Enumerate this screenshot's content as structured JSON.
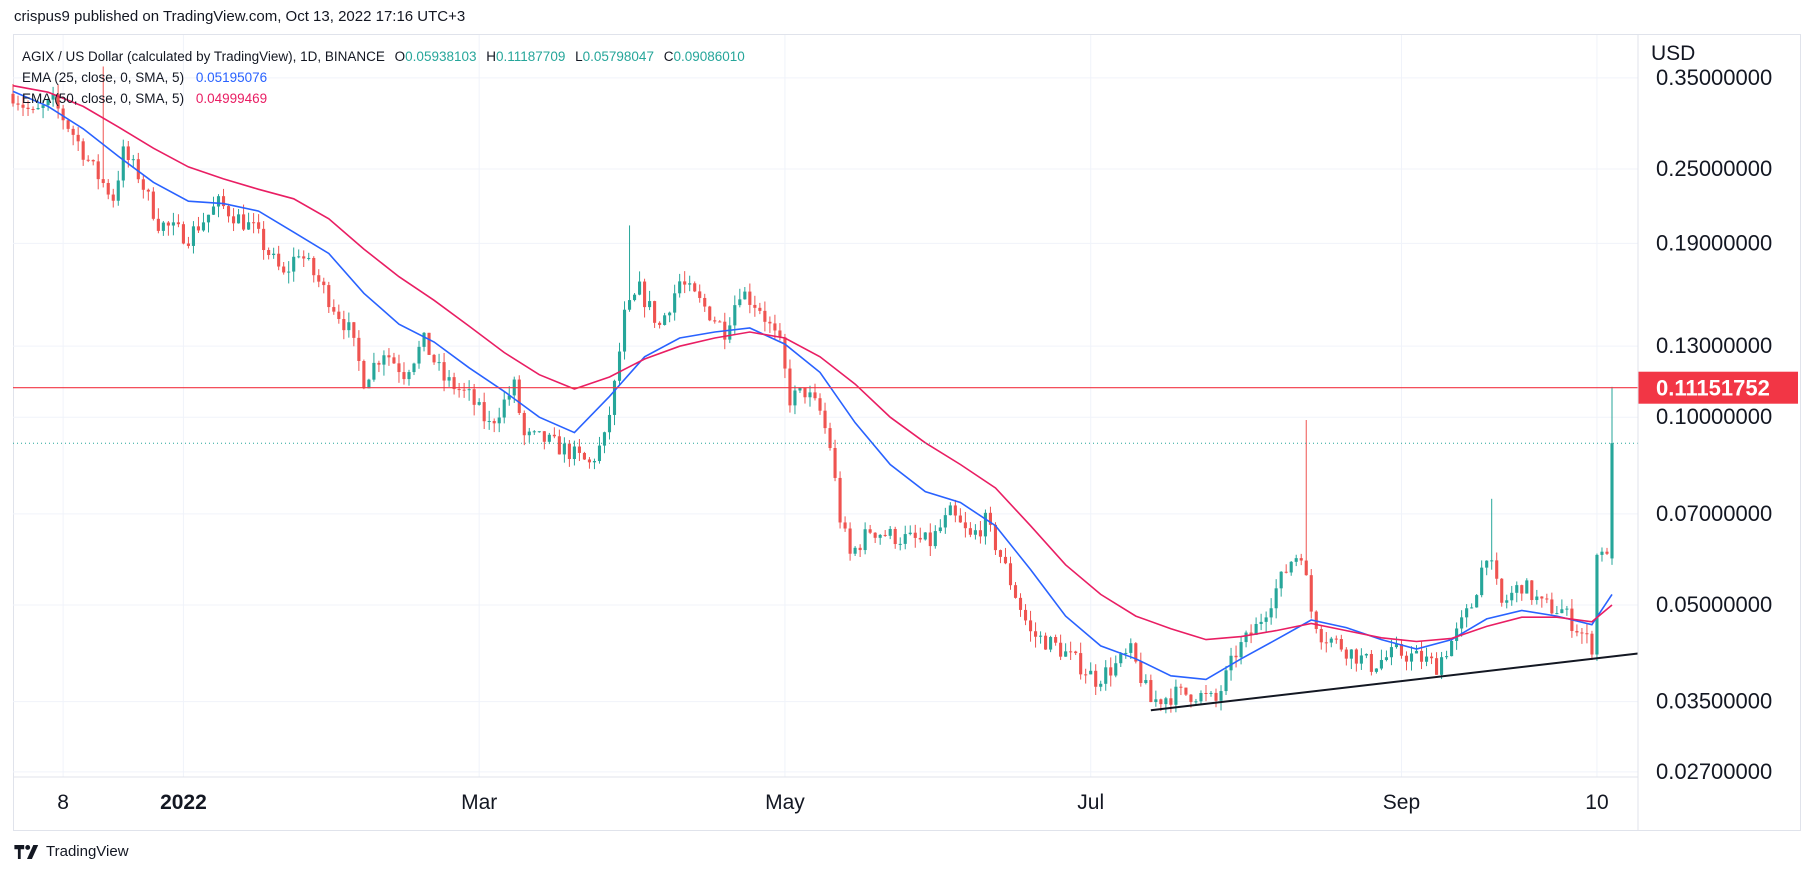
{
  "header": {
    "published_by": "crispus9 published on TradingView.com, Oct 13, 2022 17:16 UTC+3"
  },
  "legend": {
    "symbol": "AGIX / US Dollar (calculated by TradingView), 1D, BINANCE",
    "open_label": "O",
    "open": "0.05938103",
    "high_label": "H",
    "high": "0.11187709",
    "low_label": "L",
    "low": "0.05798047",
    "close_label": "C",
    "close": "0.09086010",
    "ema25_label": "EMA (25, close, 0, SMA, 5)",
    "ema25_value": "0.05195076",
    "ema50_label": "EMA (50, close, 0, SMA, 5)",
    "ema50_value": "0.04999469"
  },
  "footer": {
    "brand": "TradingView"
  },
  "chart_data": {
    "type": "candlestick",
    "currency": "USD",
    "y_scale": "log",
    "ylim": [
      0.0265,
      0.41
    ],
    "xlim": [
      "2021-11-28",
      "2022-10-13"
    ],
    "y_ticks": [
      0.35,
      0.25,
      0.19,
      0.13,
      0.1,
      0.07,
      0.05,
      0.035,
      0.027
    ],
    "y_tick_labels": [
      "0.35000000",
      "0.25000000",
      "0.19000000",
      "0.13000000",
      "0.10000000",
      "0.07000000",
      "0.05000000",
      "0.03500000",
      "0.02700000"
    ],
    "x_ticks": [
      {
        "label": "8",
        "date": "2021-12-08",
        "bold": false
      },
      {
        "label": "2022",
        "date": "2022-01-01",
        "bold": true
      },
      {
        "label": "Mar",
        "date": "2022-03-01",
        "bold": false
      },
      {
        "label": "May",
        "date": "2022-05-01",
        "bold": false
      },
      {
        "label": "Jul",
        "date": "2022-07-01",
        "bold": false
      },
      {
        "label": "Sep",
        "date": "2022-09-01",
        "bold": false
      },
      {
        "label": "10",
        "date": "2022-10-10",
        "bold": false
      }
    ],
    "price_line": {
      "value": 0.11151752,
      "label": "0.11151752",
      "color": "#f23645"
    },
    "last_close_line": {
      "value": 0.0908601,
      "color": "#26a69a"
    },
    "trendline": {
      "from": {
        "date": "2022-07-13",
        "value": 0.0339
      },
      "to": {
        "date": "2022-10-13",
        "value": 0.0415
      },
      "color": "#131722"
    },
    "colors": {
      "up": "#26a69a",
      "down": "#ef5350",
      "ema25": "#2962ff",
      "ema50": "#e91e63",
      "grid": "#f0f3fa"
    },
    "series": [
      {
        "name": "EMA (25, close, 0, SMA, 5)",
        "color": "#2962ff",
        "points": [
          [
            "2021-11-28",
            0.333
          ],
          [
            "2021-12-05",
            0.315
          ],
          [
            "2021-12-12",
            0.29
          ],
          [
            "2021-12-19",
            0.262
          ],
          [
            "2021-12-26",
            0.238
          ],
          [
            "2022-01-02",
            0.222
          ],
          [
            "2022-01-09",
            0.22
          ],
          [
            "2022-01-16",
            0.214
          ],
          [
            "2022-01-23",
            0.198
          ],
          [
            "2022-01-30",
            0.183
          ],
          [
            "2022-02-06",
            0.158
          ],
          [
            "2022-02-13",
            0.141
          ],
          [
            "2022-02-20",
            0.132
          ],
          [
            "2022-02-27",
            0.12
          ],
          [
            "2022-03-06",
            0.11
          ],
          [
            "2022-03-13",
            0.1
          ],
          [
            "2022-03-20",
            0.0945
          ],
          [
            "2022-03-27",
            0.108
          ],
          [
            "2022-04-03",
            0.125
          ],
          [
            "2022-04-10",
            0.134
          ],
          [
            "2022-04-17",
            0.137
          ],
          [
            "2022-04-24",
            0.139
          ],
          [
            "2022-05-01",
            0.131
          ],
          [
            "2022-05-08",
            0.118
          ],
          [
            "2022-05-15",
            0.098
          ],
          [
            "2022-05-22",
            0.084
          ],
          [
            "2022-05-29",
            0.076
          ],
          [
            "2022-06-05",
            0.073
          ],
          [
            "2022-06-12",
            0.067
          ],
          [
            "2022-06-19",
            0.057
          ],
          [
            "2022-06-26",
            0.048
          ],
          [
            "2022-07-03",
            0.043
          ],
          [
            "2022-07-10",
            0.041
          ],
          [
            "2022-07-17",
            0.0385
          ],
          [
            "2022-07-24",
            0.038
          ],
          [
            "2022-07-31",
            0.041
          ],
          [
            "2022-08-07",
            0.044
          ],
          [
            "2022-08-14",
            0.0473
          ],
          [
            "2022-08-21",
            0.046
          ],
          [
            "2022-08-28",
            0.044
          ],
          [
            "2022-09-04",
            0.0425
          ],
          [
            "2022-09-11",
            0.044
          ],
          [
            "2022-09-18",
            0.0475
          ],
          [
            "2022-09-25",
            0.049
          ],
          [
            "2022-10-02",
            0.048
          ],
          [
            "2022-10-09",
            0.0465
          ],
          [
            "2022-10-13",
            0.052
          ]
        ]
      },
      {
        "name": "EMA (50, close, 0, SMA, 5)",
        "color": "#e91e63",
        "points": [
          [
            "2021-11-28",
            0.34
          ],
          [
            "2021-12-05",
            0.332
          ],
          [
            "2021-12-12",
            0.315
          ],
          [
            "2021-12-19",
            0.292
          ],
          [
            "2021-12-26",
            0.27
          ],
          [
            "2022-01-02",
            0.252
          ],
          [
            "2022-01-09",
            0.241
          ],
          [
            "2022-01-16",
            0.232
          ],
          [
            "2022-01-23",
            0.224
          ],
          [
            "2022-01-30",
            0.208
          ],
          [
            "2022-02-06",
            0.186
          ],
          [
            "2022-02-13",
            0.168
          ],
          [
            "2022-02-20",
            0.154
          ],
          [
            "2022-02-27",
            0.14
          ],
          [
            "2022-03-06",
            0.127
          ],
          [
            "2022-03-13",
            0.117
          ],
          [
            "2022-03-20",
            0.111
          ],
          [
            "2022-03-27",
            0.116
          ],
          [
            "2022-04-03",
            0.124
          ],
          [
            "2022-04-10",
            0.13
          ],
          [
            "2022-04-17",
            0.134
          ],
          [
            "2022-04-24",
            0.137
          ],
          [
            "2022-05-01",
            0.134
          ],
          [
            "2022-05-08",
            0.125
          ],
          [
            "2022-05-15",
            0.113
          ],
          [
            "2022-05-22",
            0.1
          ],
          [
            "2022-05-29",
            0.091
          ],
          [
            "2022-06-05",
            0.084
          ],
          [
            "2022-06-12",
            0.077
          ],
          [
            "2022-06-19",
            0.067
          ],
          [
            "2022-06-26",
            0.058
          ],
          [
            "2022-07-03",
            0.052
          ],
          [
            "2022-07-10",
            0.048
          ],
          [
            "2022-07-17",
            0.0458
          ],
          [
            "2022-07-24",
            0.044
          ],
          [
            "2022-07-31",
            0.0445
          ],
          [
            "2022-08-07",
            0.0455
          ],
          [
            "2022-08-14",
            0.0467
          ],
          [
            "2022-08-21",
            0.0455
          ],
          [
            "2022-08-28",
            0.0443
          ],
          [
            "2022-09-04",
            0.0437
          ],
          [
            "2022-09-11",
            0.0442
          ],
          [
            "2022-09-18",
            0.0462
          ],
          [
            "2022-09-25",
            0.0478
          ],
          [
            "2022-10-02",
            0.0478
          ],
          [
            "2022-10-09",
            0.047
          ],
          [
            "2022-10-13",
            0.05
          ]
        ]
      }
    ],
    "price_path": [
      [
        "2021-11-28",
        0.33
      ],
      [
        "2021-12-02",
        0.305
      ],
      [
        "2021-12-06",
        0.32
      ],
      [
        "2021-12-10",
        0.285
      ],
      [
        "2021-12-14",
        0.25
      ],
      [
        "2021-12-18",
        0.225
      ],
      [
        "2021-12-20",
        0.265
      ],
      [
        "2021-12-23",
        0.245
      ],
      [
        "2021-12-27",
        0.205
      ],
      [
        "2022-01-02",
        0.195
      ],
      [
        "2022-01-08",
        0.22
      ],
      [
        "2022-01-15",
        0.2
      ],
      [
        "2022-01-21",
        0.168
      ],
      [
        "2022-01-24",
        0.185
      ],
      [
        "2022-01-29",
        0.16
      ],
      [
        "2022-02-03",
        0.138
      ],
      [
        "2022-02-06",
        0.115
      ],
      [
        "2022-02-10",
        0.128
      ],
      [
        "2022-02-14",
        0.118
      ],
      [
        "2022-02-18",
        0.132
      ],
      [
        "2022-02-22",
        0.115
      ],
      [
        "2022-02-27",
        0.108
      ],
      [
        "2022-03-03",
        0.097
      ],
      [
        "2022-03-08",
        0.112
      ],
      [
        "2022-03-10",
        0.093
      ],
      [
        "2022-03-14",
        0.092
      ],
      [
        "2022-03-19",
        0.088
      ],
      [
        "2022-03-23",
        0.084
      ],
      [
        "2022-03-26",
        0.092
      ],
      [
        "2022-03-28",
        0.112
      ],
      [
        "2022-03-30",
        0.145
      ],
      [
        "2022-04-02",
        0.16
      ],
      [
        "2022-04-06",
        0.14
      ],
      [
        "2022-04-10",
        0.165
      ],
      [
        "2022-04-15",
        0.15
      ],
      [
        "2022-04-19",
        0.138
      ],
      [
        "2022-04-22",
        0.16
      ],
      [
        "2022-04-26",
        0.15
      ],
      [
        "2022-04-30",
        0.13
      ],
      [
        "2022-05-02",
        0.107
      ],
      [
        "2022-05-05",
        0.11
      ],
      [
        "2022-05-08",
        0.102
      ],
      [
        "2022-05-10",
        0.09
      ],
      [
        "2022-05-12",
        0.069
      ],
      [
        "2022-05-14",
        0.06
      ],
      [
        "2022-05-18",
        0.066
      ],
      [
        "2022-05-24",
        0.064
      ],
      [
        "2022-05-30",
        0.063
      ],
      [
        "2022-06-03",
        0.07
      ],
      [
        "2022-06-07",
        0.064
      ],
      [
        "2022-06-10",
        0.068
      ],
      [
        "2022-06-13",
        0.06
      ],
      [
        "2022-06-16",
        0.052
      ],
      [
        "2022-06-19",
        0.045
      ],
      [
        "2022-06-24",
        0.043
      ],
      [
        "2022-06-29",
        0.04
      ],
      [
        "2022-07-02",
        0.038
      ],
      [
        "2022-07-06",
        0.04
      ],
      [
        "2022-07-09",
        0.042
      ],
      [
        "2022-07-13",
        0.035
      ],
      [
        "2022-07-18",
        0.036
      ],
      [
        "2022-07-22",
        0.036
      ],
      [
        "2022-07-26",
        0.035
      ],
      [
        "2022-07-30",
        0.042
      ],
      [
        "2022-08-03",
        0.046
      ],
      [
        "2022-08-07",
        0.053
      ],
      [
        "2022-08-10",
        0.059
      ],
      [
        "2022-08-12",
        0.061
      ],
      [
        "2022-08-14",
        0.049
      ],
      [
        "2022-08-16",
        0.045
      ],
      [
        "2022-08-20",
        0.043
      ],
      [
        "2022-08-26",
        0.04
      ],
      [
        "2022-08-31",
        0.042
      ],
      [
        "2022-09-05",
        0.041
      ],
      [
        "2022-09-08",
        0.04
      ],
      [
        "2022-09-12",
        0.045
      ],
      [
        "2022-09-15",
        0.05
      ],
      [
        "2022-09-18",
        0.061
      ],
      [
        "2022-09-21",
        0.05
      ],
      [
        "2022-09-25",
        0.054
      ],
      [
        "2022-09-29",
        0.05
      ],
      [
        "2022-10-03",
        0.049
      ],
      [
        "2022-10-07",
        0.045
      ],
      [
        "2022-10-09",
        0.043
      ],
      [
        "2022-10-10",
        0.06
      ],
      [
        "2022-10-11",
        0.062
      ],
      [
        "2022-10-12",
        0.059
      ],
      [
        "2022-10-13",
        0.09086
      ]
    ],
    "wick_spikes": [
      [
        "2021-12-16",
        0.365
      ],
      [
        "2022-03-31",
        0.203
      ],
      [
        "2022-08-13",
        0.099
      ],
      [
        "2022-09-19",
        0.074
      ],
      [
        "2022-10-13",
        0.11187709
      ]
    ]
  }
}
